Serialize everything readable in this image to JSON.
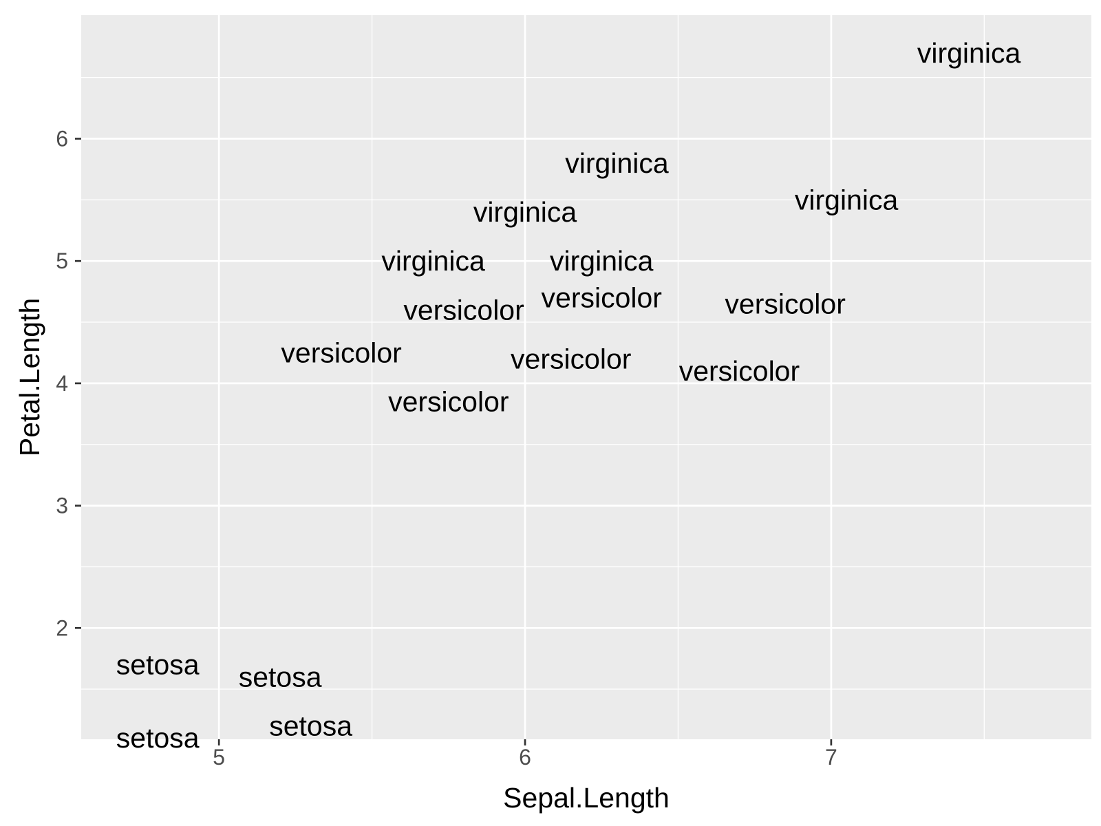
{
  "chart_data": {
    "type": "scatter",
    "title": "",
    "xlabel": "Sepal.Length",
    "ylabel": "Petal.Length",
    "xlim": [
      4.55,
      7.85
    ],
    "ylim": [
      1.09,
      7.01
    ],
    "x_ticks": [
      5,
      6,
      7
    ],
    "y_ticks": [
      2,
      3,
      4,
      5,
      6
    ],
    "grid": true,
    "legend": "none",
    "colors": {
      "panel_background": "#ebebeb",
      "grid_line": "#ffffff",
      "tick_text": "#4d4d4d",
      "label_text": "#000000"
    },
    "points": [
      {
        "x": 4.8,
        "y": 1.7,
        "label": "setosa"
      },
      {
        "x": 5.2,
        "y": 1.6,
        "label": "setosa"
      },
      {
        "x": 4.8,
        "y": 1.1,
        "label": "setosa"
      },
      {
        "x": 5.3,
        "y": 1.2,
        "label": "setosa"
      },
      {
        "x": 5.7,
        "y": 5.0,
        "label": "virginica"
      },
      {
        "x": 5.8,
        "y": 4.6,
        "label": "versicolor"
      },
      {
        "x": 5.4,
        "y": 4.25,
        "label": "versicolor"
      },
      {
        "x": 5.75,
        "y": 3.85,
        "label": "versicolor"
      },
      {
        "x": 6.3,
        "y": 5.8,
        "label": "virginica"
      },
      {
        "x": 6.0,
        "y": 5.4,
        "label": "virginica"
      },
      {
        "x": 6.25,
        "y": 5.0,
        "label": "virginica"
      },
      {
        "x": 7.05,
        "y": 5.5,
        "label": "virginica"
      },
      {
        "x": 7.45,
        "y": 6.7,
        "label": "virginica"
      },
      {
        "x": 6.25,
        "y": 4.7,
        "label": "versicolor"
      },
      {
        "x": 6.85,
        "y": 4.65,
        "label": "versicolor"
      },
      {
        "x": 6.15,
        "y": 4.2,
        "label": "versicolor"
      },
      {
        "x": 6.7,
        "y": 4.1,
        "label": "versicolor"
      }
    ]
  }
}
